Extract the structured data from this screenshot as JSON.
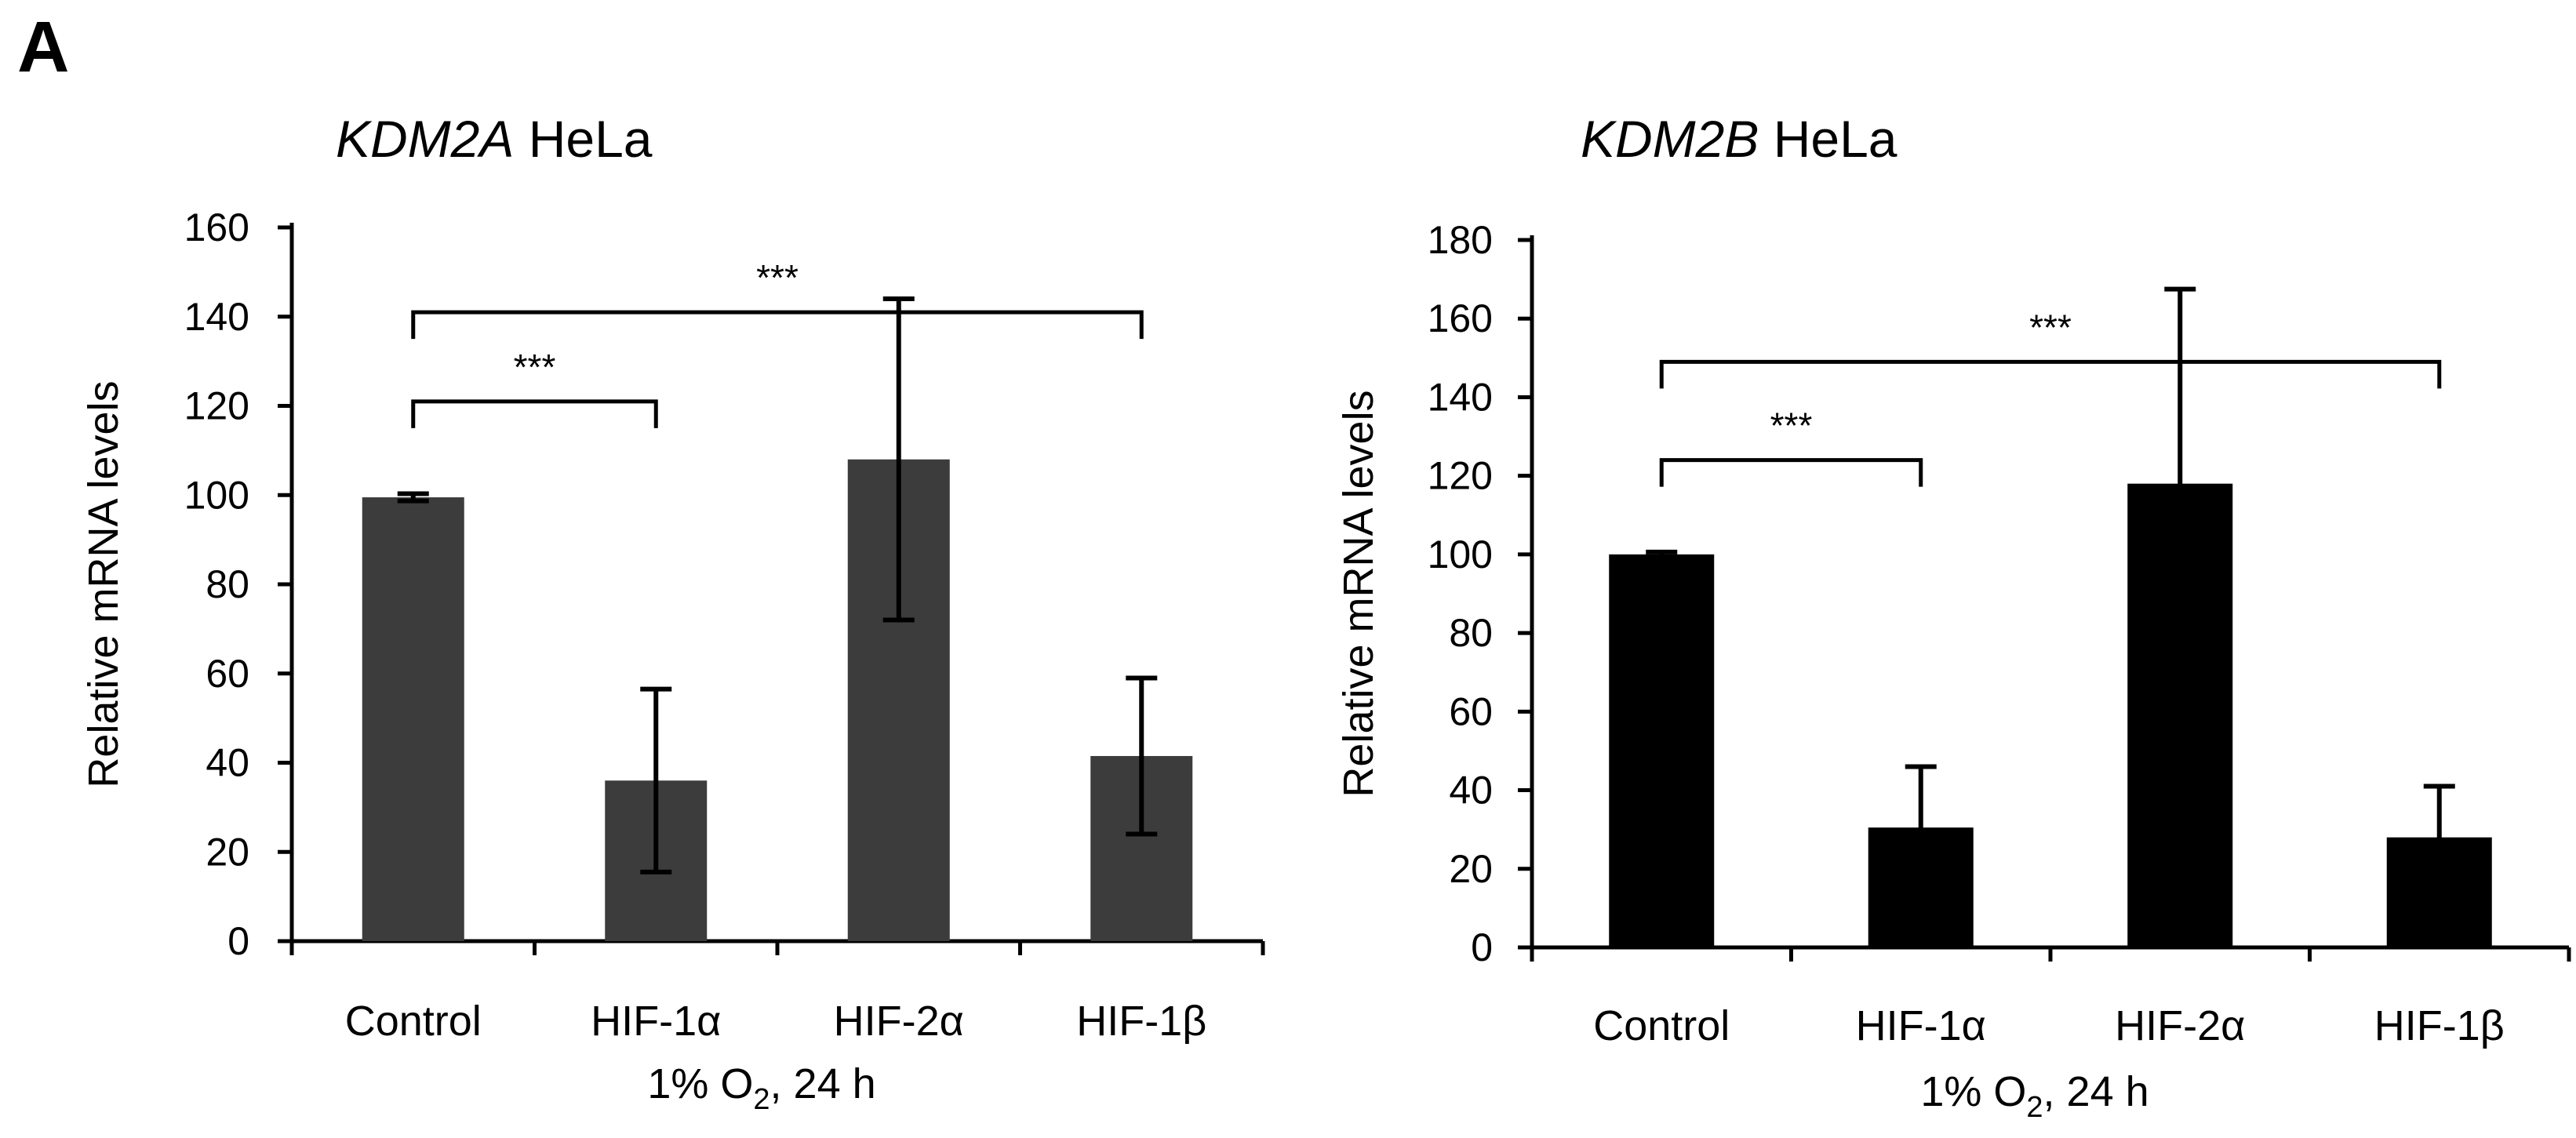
{
  "panel_label": "A",
  "chart_data": [
    {
      "type": "bar",
      "title_gene": "KDM2A",
      "title_cell": "HeLa",
      "categories": [
        "Control",
        "HIF-1α",
        "HIF-2α",
        "HIF-1β"
      ],
      "values": [
        99.5,
        36,
        108,
        41.5
      ],
      "error": [
        0.8,
        20.5,
        36,
        17.5
      ],
      "ylim": [
        0,
        160
      ],
      "yticks": [
        0,
        20,
        40,
        60,
        80,
        100,
        120,
        140,
        160
      ],
      "ylabel": "Relative mRNA levels",
      "xlabel_prefix": "1% O",
      "xlabel_sub": "2",
      "xlabel_suffix": ", 24 h",
      "bar_color": "#3c3c3c",
      "significance": [
        {
          "from": 0,
          "to": 1,
          "y": 121,
          "label": "***"
        },
        {
          "from": 0,
          "to": 3,
          "y": 141,
          "label": "***"
        }
      ]
    },
    {
      "type": "bar",
      "title_gene": "KDM2B",
      "title_cell": "HeLa",
      "categories": [
        "Control",
        "HIF-1α",
        "HIF-2α",
        "HIF-1β"
      ],
      "values": [
        100,
        30.5,
        118,
        28
      ],
      "error": [
        0.6,
        15.5,
        49.5,
        13
      ],
      "ylim": [
        0,
        180
      ],
      "yticks": [
        0,
        20,
        40,
        60,
        80,
        100,
        120,
        140,
        160,
        180
      ],
      "ylabel": "Relative mRNA levels",
      "xlabel_prefix": "1% O",
      "xlabel_sub": "2",
      "xlabel_suffix": ", 24 h",
      "bar_color": "#000000",
      "significance": [
        {
          "from": 0,
          "to": 1,
          "y": 124,
          "label": "***"
        },
        {
          "from": 0,
          "to": 3,
          "y": 149,
          "label": "***"
        }
      ]
    }
  ]
}
